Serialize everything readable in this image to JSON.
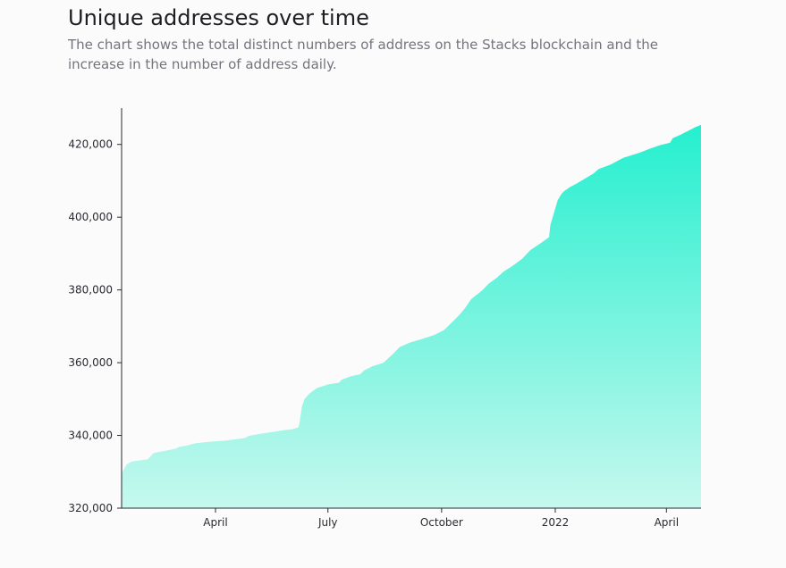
{
  "header": {
    "title": "Unique addresses over time",
    "subtitle": "The chart shows the total distinct numbers of address on the Stacks blockchain and the increase in the number of address daily."
  },
  "chart_data": {
    "type": "area",
    "title": "Unique addresses over time",
    "xlabel": "",
    "ylabel": "",
    "x_type": "date",
    "xlim": [
      "2021-01-15",
      "2022-04-29"
    ],
    "ylim": [
      320000,
      430000
    ],
    "y_ticks": [
      320000,
      340000,
      360000,
      380000,
      400000,
      420000
    ],
    "y_tick_labels": [
      "320,000",
      "340,000",
      "360,000",
      "380,000",
      "400,000",
      "420,000"
    ],
    "x_ticks": [
      "2021-04-01",
      "2021-07-01",
      "2021-10-01",
      "2022-01-01",
      "2022-04-01"
    ],
    "x_tick_labels": [
      "April",
      "July",
      "October",
      "2022",
      "April"
    ],
    "grid": false,
    "legend": "none",
    "fill_color_top": "#25efcf",
    "fill_color_bottom": "#c6f8ee",
    "series": [
      {
        "x": [
          "2021-01-15",
          "2021-01-19",
          "2021-01-23",
          "2021-01-29",
          "2021-02-05",
          "2021-02-10",
          "2021-02-15",
          "2021-02-20",
          "2021-02-28",
          "2021-03-02",
          "2021-03-10",
          "2021-03-14",
          "2021-03-17",
          "2021-03-28",
          "2021-04-10",
          "2021-04-25",
          "2021-04-28",
          "2021-05-10",
          "2021-05-20",
          "2021-05-25",
          "2021-06-02",
          "2021-06-07",
          "2021-06-08",
          "2021-06-10",
          "2021-06-12",
          "2021-06-16",
          "2021-06-22",
          "2021-07-01",
          "2021-07-10",
          "2021-07-12",
          "2021-07-20",
          "2021-07-27",
          "2021-07-30",
          "2021-08-06",
          "2021-08-15",
          "2021-08-23",
          "2021-08-28",
          "2021-09-05",
          "2021-09-15",
          "2021-09-25",
          "2021-10-03",
          "2021-10-10",
          "2021-10-15",
          "2021-10-20",
          "2021-10-25",
          "2021-11-03",
          "2021-11-08",
          "2021-11-15",
          "2021-11-20",
          "2021-11-27",
          "2021-12-05",
          "2021-12-12",
          "2021-12-20",
          "2021-12-27",
          "2021-12-28",
          "2022-01-03",
          "2022-01-06",
          "2022-01-08",
          "2022-01-10",
          "2022-01-13",
          "2022-01-18",
          "2022-01-25",
          "2022-02-01",
          "2022-02-05",
          "2022-02-15",
          "2022-02-25",
          "2022-03-10",
          "2022-03-20",
          "2022-03-27",
          "2022-04-04",
          "2022-04-06",
          "2022-04-12",
          "2022-04-19",
          "2022-04-24",
          "2022-04-29"
        ],
        "y": [
          329500,
          332000,
          332800,
          333100,
          333400,
          335200,
          335500,
          335800,
          336400,
          336800,
          337300,
          337700,
          337900,
          338300,
          338600,
          339300,
          339900,
          340600,
          341100,
          341400,
          341700,
          342200,
          343500,
          348000,
          350000,
          351500,
          353000,
          354000,
          354500,
          355300,
          356300,
          356800,
          357800,
          359000,
          360000,
          362500,
          364300,
          365500,
          366500,
          367600,
          369000,
          371300,
          373000,
          375000,
          377500,
          379900,
          381700,
          383400,
          385000,
          386500,
          388500,
          391000,
          392800,
          394500,
          397800,
          404700,
          406400,
          407100,
          407600,
          408300,
          409200,
          410600,
          412000,
          413200,
          414500,
          416300,
          417700,
          419000,
          419800,
          420500,
          421700,
          422600,
          423800,
          424700,
          425400
        ]
      }
    ]
  }
}
